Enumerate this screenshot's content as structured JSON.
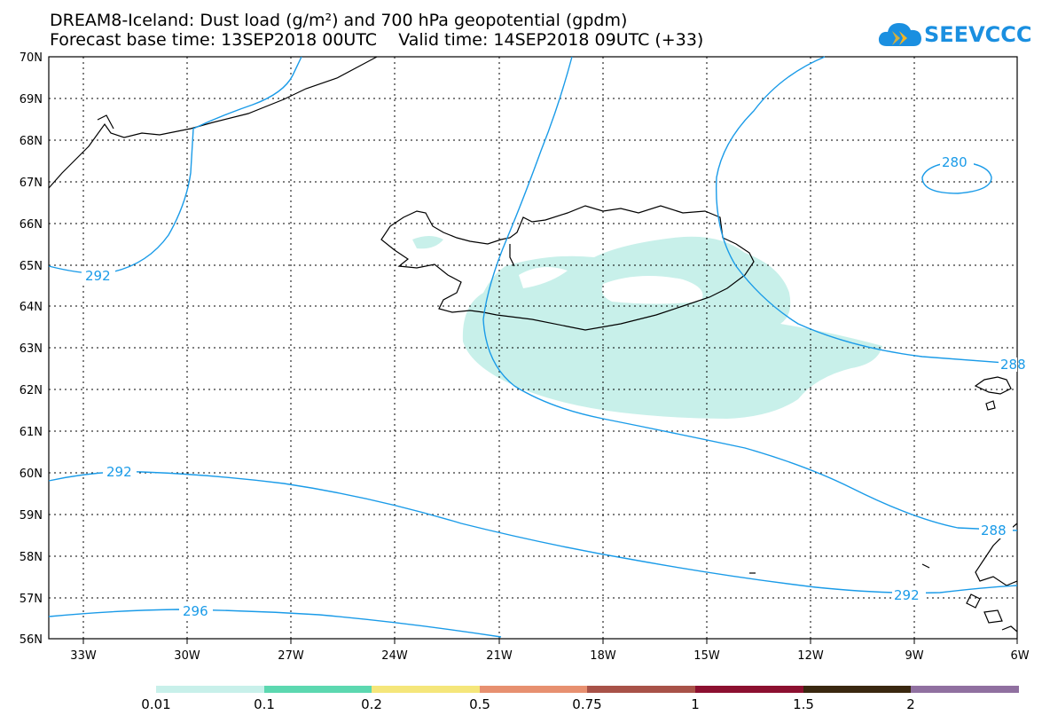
{
  "header": {
    "title_line1": "DREAM8-Iceland: Dust load (g/m²) and 700 hPa geopotential (gpdm)",
    "title_line2": "Forecast base time: 13SEP2018 00UTC    Valid time: 14SEP2018 09UTC (+33)"
  },
  "logo": {
    "text": "SEEVCCC",
    "icon": "cloud-icon",
    "color": "#1a8fe0"
  },
  "map": {
    "lon_labels": [
      "33W",
      "30W",
      "27W",
      "24W",
      "21W",
      "18W",
      "15W",
      "12W",
      "9W",
      "6W"
    ],
    "lat_labels": [
      "70N",
      "69N",
      "68N",
      "67N",
      "66N",
      "65N",
      "64N",
      "63N",
      "62N",
      "61N",
      "60N",
      "59N",
      "58N",
      "57N",
      "56N"
    ],
    "contour_color": "#1a9be8",
    "coast_color": "#000000",
    "dust_color": "#c8f0ea",
    "contour_labels": [
      "292",
      "292",
      "296",
      "280",
      "288",
      "288",
      "292"
    ]
  },
  "colorbar": {
    "colors": [
      "#c8f0ea",
      "#5cd8b0",
      "#f5e67a",
      "#e79070",
      "#a85248",
      "#8c1030",
      "#3a2810",
      "#9070a0"
    ],
    "labels": [
      "0.01",
      "0.1",
      "0.2",
      "0.5",
      "0.75",
      "1",
      "1.5",
      "2"
    ]
  }
}
